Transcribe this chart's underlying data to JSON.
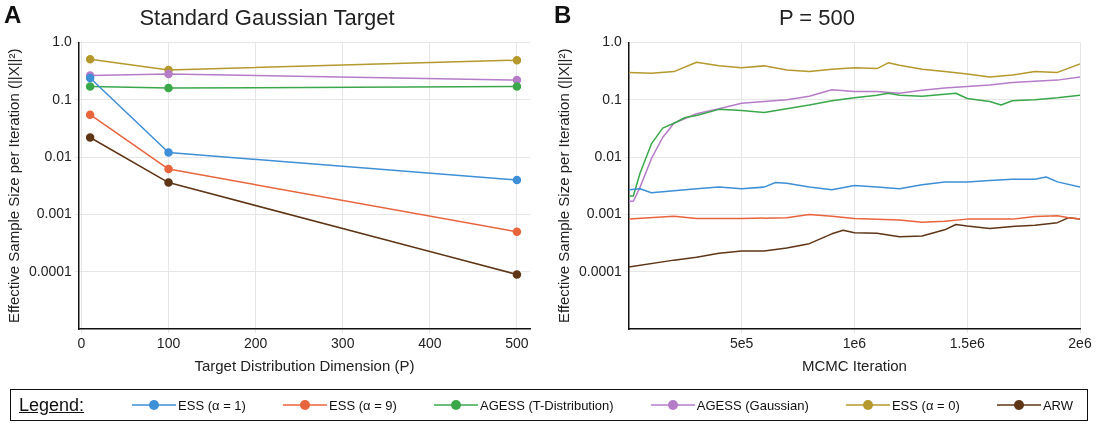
{
  "chart_data": [
    {
      "type": "line",
      "title": "Standard Gaussian Target",
      "xlabel": "Target Distribution Dimension (P)",
      "ylabel": "Effective Sample Size per Iteration (||X||²)",
      "annotations": [
        "A"
      ],
      "legend_title": "Legend:",
      "legend": "bottom",
      "log": "y",
      "grid": true,
      "marker": "circle",
      "line_style": "solid",
      "x": [
        10,
        100,
        500
      ],
      "xlim": [
        -3,
        515
      ],
      "xticks": [
        0,
        100,
        200,
        300,
        400,
        500
      ],
      "ylim": [
        1e-05,
        1
      ],
      "yticks": [
        {
          "value": 1,
          "label": "1.0"
        },
        0.1,
        0.01,
        0.001,
        0.0001
      ],
      "series": [
        {
          "name": "ESS (α = 1)",
          "color": "#3d8fd6",
          "values": [
            0.24,
            0.012,
            0.004
          ]
        },
        {
          "name": "ESS (α = 9)",
          "color": "#e8643c",
          "values": [
            0.055,
            0.0062,
            0.0005
          ]
        },
        {
          "name": "AGESS (T-Distribution)",
          "color": "#3aa84a",
          "values": [
            0.17,
            0.16,
            0.17
          ]
        },
        {
          "name": "AGESS (Gaussian)",
          "color": "#b57cc8",
          "values": [
            0.265,
            0.28,
            0.22
          ]
        },
        {
          "name": "ESS (α = 0)",
          "color": "#b5982e",
          "values": [
            0.51,
            0.33,
            0.49
          ]
        },
        {
          "name": "ARW",
          "color": "#5e3515",
          "values": [
            0.022,
            0.0036,
            9e-05
          ]
        }
      ]
    },
    {
      "type": "line",
      "title": "P = 500",
      "xlabel": "MCMC Iteration",
      "ylabel": "Effective Sample Size per Iteration (||X||²)",
      "annotations": [
        "B"
      ],
      "log": "y",
      "grid": true,
      "marker": "none",
      "line_style": "solid",
      "xlim": [
        0,
        2000000
      ],
      "xticks": [
        {
          "value": 500000,
          "label": "5e5"
        },
        {
          "value": 1000000,
          "label": "1e6"
        },
        {
          "value": 1500000,
          "label": "1.5e6"
        },
        {
          "value": 2000000,
          "label": "2e6"
        }
      ],
      "ylim": [
        1e-05,
        1
      ],
      "yticks": [
        {
          "value": 1,
          "label": "1.0"
        },
        0.1,
        0.01,
        0.001,
        0.0001
      ],
      "series": [
        {
          "color": "#3d8fd6",
          "x": [
            0,
            50000,
            100000,
            200000,
            300000,
            400000,
            500000,
            600000,
            650000,
            700000,
            800000,
            900000,
            1000000,
            1100000,
            1200000,
            1300000,
            1400000,
            1500000,
            1600000,
            1700000,
            1800000,
            1850000,
            1900000,
            2000000
          ],
          "values": [
            0.0027,
            0.0028,
            0.0024,
            0.0026,
            0.0028,
            0.003,
            0.0028,
            0.003,
            0.0036,
            0.0035,
            0.003,
            0.0027,
            0.0032,
            0.003,
            0.0028,
            0.0033,
            0.0037,
            0.0037,
            0.0039,
            0.0041,
            0.0041,
            0.0045,
            0.0037,
            0.003
          ]
        },
        {
          "color": "#e8643c",
          "x": [
            0,
            200000,
            300000,
            500000,
            700000,
            800000,
            900000,
            1000000,
            1200000,
            1300000,
            1400000,
            1500000,
            1700000,
            1800000,
            1900000,
            1950000,
            2000000
          ],
          "values": [
            0.00083,
            0.00093,
            0.00085,
            0.00085,
            0.00088,
            0.001,
            0.00093,
            0.00085,
            0.0008,
            0.00073,
            0.00076,
            0.00083,
            0.00083,
            0.00092,
            0.00095,
            0.00088,
            0.00083
          ]
        },
        {
          "color": "#3aa84a",
          "x": [
            0,
            20000,
            50000,
            100000,
            150000,
            200000,
            250000,
            300000,
            400000,
            500000,
            600000,
            700000,
            800000,
            900000,
            1000000,
            1100000,
            1150000,
            1200000,
            1300000,
            1400000,
            1450000,
            1500000,
            1600000,
            1650000,
            1700000,
            1800000,
            1900000,
            2000000
          ],
          "values": [
            0.0021,
            0.0021,
            0.0053,
            0.017,
            0.032,
            0.039,
            0.049,
            0.053,
            0.068,
            0.065,
            0.06,
            0.07,
            0.081,
            0.096,
            0.108,
            0.12,
            0.13,
            0.12,
            0.115,
            0.125,
            0.13,
            0.105,
            0.093,
            0.081,
            0.096,
            0.1,
            0.108,
            0.12
          ]
        },
        {
          "color": "#b57cc8",
          "x": [
            0,
            20000,
            50000,
            100000,
            150000,
            200000,
            300000,
            400000,
            500000,
            600000,
            700000,
            800000,
            900000,
            1000000,
            1100000,
            1200000,
            1300000,
            1400000,
            1500000,
            1600000,
            1700000,
            1800000,
            1900000,
            2000000
          ],
          "values": [
            0.0017,
            0.0017,
            0.003,
            0.0094,
            0.022,
            0.039,
            0.057,
            0.07,
            0.087,
            0.093,
            0.1,
            0.115,
            0.15,
            0.14,
            0.14,
            0.13,
            0.147,
            0.16,
            0.17,
            0.18,
            0.2,
            0.21,
            0.22,
            0.25
          ]
        },
        {
          "color": "#b5982e",
          "x": [
            0,
            100000,
            200000,
            300000,
            350000,
            400000,
            500000,
            600000,
            700000,
            800000,
            900000,
            1000000,
            1100000,
            1150000,
            1200000,
            1300000,
            1400000,
            1500000,
            1600000,
            1700000,
            1800000,
            1900000,
            2000000
          ],
          "values": [
            0.3,
            0.29,
            0.31,
            0.45,
            0.42,
            0.39,
            0.36,
            0.39,
            0.33,
            0.31,
            0.34,
            0.36,
            0.35,
            0.44,
            0.4,
            0.34,
            0.31,
            0.28,
            0.25,
            0.27,
            0.31,
            0.3,
            0.42
          ]
        },
        {
          "color": "#5e3515",
          "x": [
            0,
            200000,
            300000,
            400000,
            500000,
            600000,
            700000,
            800000,
            900000,
            950000,
            1000000,
            1100000,
            1200000,
            1300000,
            1400000,
            1450000,
            1500000,
            1600000,
            1700000,
            1800000,
            1900000,
            1950000,
            2000000
          ],
          "values": [
            0.000121,
            0.00016,
            0.00018,
            0.00021,
            0.00023,
            0.00023,
            0.00026,
            0.00031,
            0.00046,
            0.00053,
            0.00048,
            0.00047,
            0.00041,
            0.00042,
            0.00054,
            0.00067,
            0.00063,
            0.00057,
            0.00062,
            0.00065,
            0.00072,
            0.00088,
            0.00083
          ]
        }
      ]
    }
  ]
}
